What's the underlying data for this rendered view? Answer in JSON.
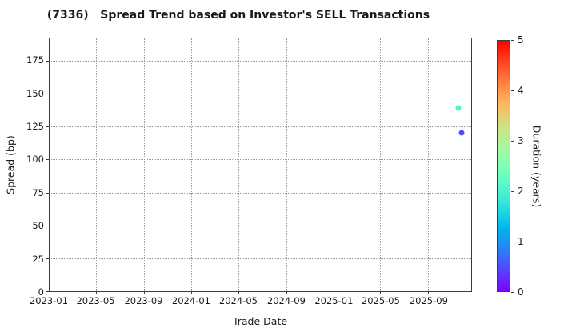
{
  "title": "(7336)   Spread Trend based on Investor's SELL Transactions",
  "chart_data": {
    "type": "scatter",
    "title": "(7336)   Spread Trend based on Investor's SELL Transactions",
    "xlabel": "Trade Date",
    "ylabel": "Spread (bp)",
    "xlim": [
      "2023-01-01",
      "2025-12-21"
    ],
    "ylim": [
      0,
      192
    ],
    "x_ticks": [
      "2023-01",
      "2023-05",
      "2023-09",
      "2024-01",
      "2024-05",
      "2024-09",
      "2025-01",
      "2025-05",
      "2025-09"
    ],
    "y_ticks": [
      0,
      25,
      50,
      75,
      100,
      125,
      150,
      175
    ],
    "grid": "dotted",
    "legend_position": "none",
    "points": [
      {
        "date": "2025-11-19",
        "spread_bp": 139,
        "duration_years": 2.0
      },
      {
        "date": "2025-11-27",
        "spread_bp": 120.5,
        "duration_years": 0.5
      }
    ],
    "colorbar": {
      "label": "Duration (years)",
      "min": 0,
      "max": 5,
      "ticks": [
        0,
        1,
        2,
        3,
        4,
        5
      ],
      "colormap": "rainbow"
    }
  },
  "colors": {
    "background": "#ffffff",
    "text": "#1a1a1a",
    "spine": "#3c3c3c",
    "grid": "#9a9a9a",
    "point_duration2": "#4df3ce",
    "point_duration05": "#4d4ffc",
    "colorbar_bottom": "#8000ff",
    "colorbar_top": "#ff0000"
  }
}
